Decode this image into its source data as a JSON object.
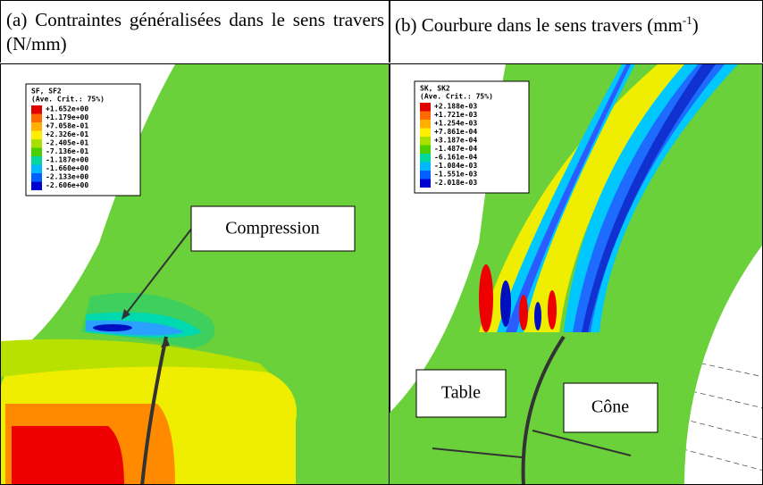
{
  "panels": [
    {
      "caption": "(a) Contraintes généralisées dans le sens travers (N/mm)",
      "legend": {
        "title": "SF, SF2",
        "subtitle": "(Ave. Crit.: 75%)",
        "labels": [
          "+1.652e+00",
          "+1.179e+00",
          "+7.058e-01",
          "+2.326e-01",
          "-2.405e-01",
          "-7.136e-01",
          "-1.187e+00",
          "-1.660e+00",
          "-2.133e+00",
          "-2.606e+00"
        ]
      },
      "annotations": [
        "Compression"
      ]
    },
    {
      "caption": "(b) Courbure dans le sens travers (mm",
      "caption_sup": "-1",
      "caption_end": ")",
      "legend": {
        "title": "SK, SK2",
        "subtitle": "(Ave. Crit.: 75%)",
        "labels": [
          "+2.188e-03",
          "+1.721e-03",
          "+1.254e-03",
          "+7.861e-04",
          "+3.187e-04",
          "-1.487e-04",
          "-6.161e-04",
          "-1.084e-03",
          "-1.551e-03",
          "-2.018e-03"
        ]
      },
      "annotations": [
        "Table",
        "Cône"
      ]
    }
  ]
}
